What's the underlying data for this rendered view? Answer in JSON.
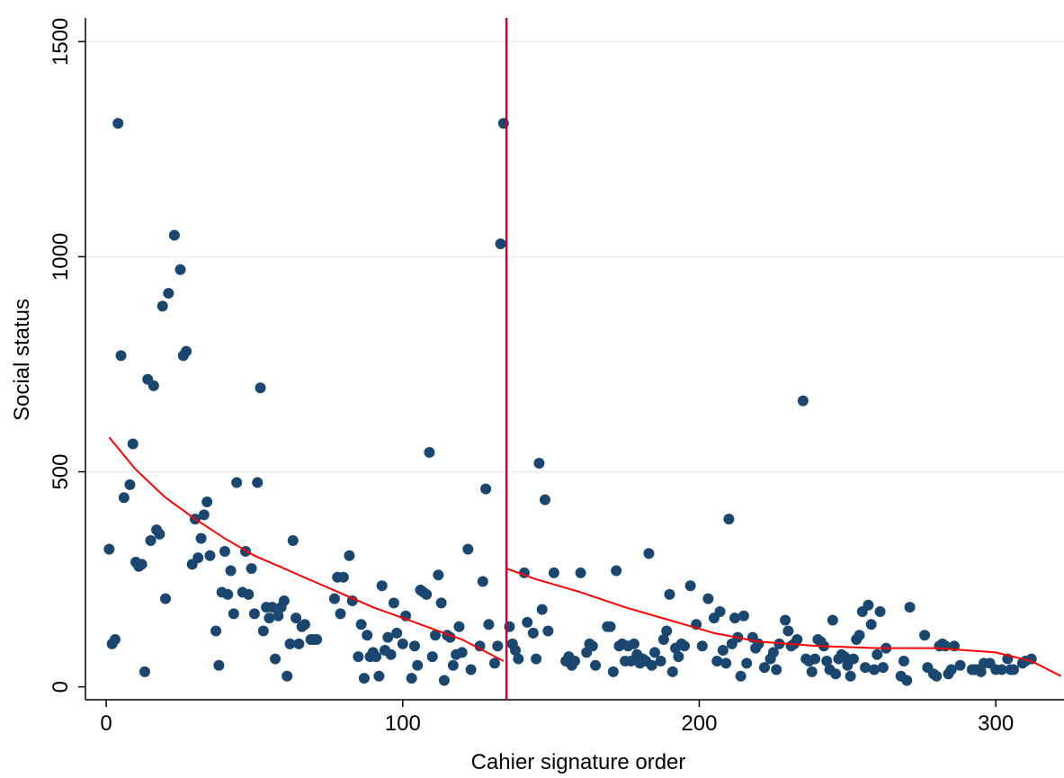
{
  "chart_data": {
    "type": "scatter",
    "title": "",
    "xlabel": "Cahier signature order",
    "ylabel": "Social status",
    "xlim": [
      -7,
      323
    ],
    "ylim": [
      -30,
      1555
    ],
    "xticks": [
      0,
      100,
      200,
      300
    ],
    "yticks": [
      0,
      500,
      1000,
      1500
    ],
    "grid": "horizontal",
    "colors": {
      "points": "#1a476f",
      "fit": "#ff0000",
      "cutoff": "#c10534",
      "grid": "#e6eef0"
    },
    "cutoff_x": 135,
    "points": [
      [
        1,
        320
      ],
      [
        2,
        100
      ],
      [
        3,
        110
      ],
      [
        4,
        1310
      ],
      [
        5,
        770
      ],
      [
        6,
        440
      ],
      [
        8,
        470
      ],
      [
        9,
        565
      ],
      [
        10,
        290
      ],
      [
        11,
        280
      ],
      [
        12,
        285
      ],
      [
        13,
        35
      ],
      [
        14,
        715
      ],
      [
        15,
        340
      ],
      [
        16,
        700
      ],
      [
        17,
        365
      ],
      [
        18,
        355
      ],
      [
        19,
        885
      ],
      [
        20,
        205
      ],
      [
        21,
        915
      ],
      [
        23,
        1050
      ],
      [
        25,
        970
      ],
      [
        26,
        770
      ],
      [
        27,
        780
      ],
      [
        29,
        285
      ],
      [
        30,
        390
      ],
      [
        31,
        300
      ],
      [
        32,
        345
      ],
      [
        33,
        400
      ],
      [
        34,
        430
      ],
      [
        35,
        305
      ],
      [
        37,
        130
      ],
      [
        38,
        50
      ],
      [
        39,
        220
      ],
      [
        40,
        315
      ],
      [
        41,
        215
      ],
      [
        42,
        270
      ],
      [
        43,
        170
      ],
      [
        44,
        475
      ],
      [
        46,
        220
      ],
      [
        47,
        315
      ],
      [
        48,
        215
      ],
      [
        49,
        275
      ],
      [
        50,
        170
      ],
      [
        51,
        475
      ],
      [
        52,
        695
      ],
      [
        53,
        130
      ],
      [
        54,
        185
      ],
      [
        55,
        160
      ],
      [
        56,
        185
      ],
      [
        57,
        65
      ],
      [
        58,
        165
      ],
      [
        59,
        185
      ],
      [
        60,
        200
      ],
      [
        61,
        25
      ],
      [
        62,
        100
      ],
      [
        63,
        340
      ],
      [
        64,
        160
      ],
      [
        65,
        100
      ],
      [
        66,
        140
      ],
      [
        67,
        145
      ],
      [
        69,
        110
      ],
      [
        70,
        110
      ],
      [
        71,
        110
      ],
      [
        77,
        205
      ],
      [
        78,
        255
      ],
      [
        79,
        170
      ],
      [
        80,
        255
      ],
      [
        82,
        305
      ],
      [
        83,
        200
      ],
      [
        85,
        70
      ],
      [
        86,
        145
      ],
      [
        87,
        20
      ],
      [
        88,
        120
      ],
      [
        89,
        70
      ],
      [
        90,
        80
      ],
      [
        91,
        70
      ],
      [
        92,
        25
      ],
      [
        93,
        235
      ],
      [
        94,
        85
      ],
      [
        95,
        115
      ],
      [
        96,
        75
      ],
      [
        97,
        195
      ],
      [
        98,
        125
      ],
      [
        100,
        100
      ],
      [
        101,
        165
      ],
      [
        103,
        20
      ],
      [
        104,
        95
      ],
      [
        105,
        50
      ],
      [
        106,
        225
      ],
      [
        107,
        220
      ],
      [
        108,
        215
      ],
      [
        109,
        545
      ],
      [
        110,
        70
      ],
      [
        111,
        120
      ],
      [
        112,
        260
      ],
      [
        113,
        195
      ],
      [
        114,
        15
      ],
      [
        115,
        120
      ],
      [
        116,
        115
      ],
      [
        117,
        50
      ],
      [
        118,
        75
      ],
      [
        119,
        140
      ],
      [
        120,
        80
      ],
      [
        122,
        320
      ],
      [
        123,
        40
      ],
      [
        126,
        95
      ],
      [
        127,
        245
      ],
      [
        128,
        460
      ],
      [
        129,
        145
      ],
      [
        131,
        55
      ],
      [
        132,
        95
      ],
      [
        133,
        1030
      ],
      [
        134,
        1310
      ],
      [
        136,
        140
      ],
      [
        137,
        100
      ],
      [
        138,
        85
      ],
      [
        139,
        65
      ],
      [
        141,
        265
      ],
      [
        142,
        150
      ],
      [
        144,
        125
      ],
      [
        145,
        65
      ],
      [
        146,
        520
      ],
      [
        147,
        180
      ],
      [
        148,
        435
      ],
      [
        149,
        130
      ],
      [
        151,
        265
      ],
      [
        155,
        60
      ],
      [
        156,
        70
      ],
      [
        157,
        50
      ],
      [
        158,
        60
      ],
      [
        160,
        265
      ],
      [
        162,
        80
      ],
      [
        163,
        100
      ],
      [
        164,
        95
      ],
      [
        165,
        50
      ],
      [
        169,
        140
      ],
      [
        170,
        140
      ],
      [
        171,
        35
      ],
      [
        172,
        270
      ],
      [
        173,
        95
      ],
      [
        174,
        100
      ],
      [
        175,
        60
      ],
      [
        176,
        95
      ],
      [
        177,
        60
      ],
      [
        178,
        100
      ],
      [
        179,
        75
      ],
      [
        180,
        55
      ],
      [
        181,
        65
      ],
      [
        182,
        60
      ],
      [
        183,
        310
      ],
      [
        184,
        50
      ],
      [
        185,
        80
      ],
      [
        187,
        60
      ],
      [
        188,
        110
      ],
      [
        189,
        130
      ],
      [
        190,
        215
      ],
      [
        191,
        35
      ],
      [
        192,
        90
      ],
      [
        193,
        70
      ],
      [
        194,
        100
      ],
      [
        195,
        95
      ],
      [
        197,
        235
      ],
      [
        199,
        145
      ],
      [
        201,
        95
      ],
      [
        203,
        205
      ],
      [
        205,
        160
      ],
      [
        206,
        60
      ],
      [
        207,
        175
      ],
      [
        208,
        85
      ],
      [
        209,
        55
      ],
      [
        210,
        390
      ],
      [
        211,
        100
      ],
      [
        212,
        160
      ],
      [
        213,
        115
      ],
      [
        214,
        25
      ],
      [
        215,
        165
      ],
      [
        216,
        55
      ],
      [
        218,
        115
      ],
      [
        219,
        90
      ],
      [
        220,
        100
      ],
      [
        222,
        45
      ],
      [
        224,
        65
      ],
      [
        225,
        80
      ],
      [
        226,
        40
      ],
      [
        227,
        100
      ],
      [
        229,
        155
      ],
      [
        230,
        130
      ],
      [
        231,
        95
      ],
      [
        232,
        100
      ],
      [
        233,
        110
      ],
      [
        235,
        665
      ],
      [
        236,
        65
      ],
      [
        237,
        60
      ],
      [
        238,
        35
      ],
      [
        239,
        65
      ],
      [
        240,
        110
      ],
      [
        241,
        105
      ],
      [
        242,
        95
      ],
      [
        243,
        60
      ],
      [
        244,
        40
      ],
      [
        245,
        155
      ],
      [
        246,
        30
      ],
      [
        247,
        65
      ],
      [
        248,
        75
      ],
      [
        249,
        70
      ],
      [
        250,
        50
      ],
      [
        251,
        25
      ],
      [
        252,
        65
      ],
      [
        253,
        110
      ],
      [
        254,
        120
      ],
      [
        255,
        175
      ],
      [
        256,
        45
      ],
      [
        257,
        190
      ],
      [
        258,
        145
      ],
      [
        259,
        40
      ],
      [
        260,
        75
      ],
      [
        261,
        175
      ],
      [
        262,
        45
      ],
      [
        263,
        90
      ],
      [
        268,
        25
      ],
      [
        269,
        60
      ],
      [
        270,
        15
      ],
      [
        271,
        185
      ],
      [
        276,
        120
      ],
      [
        277,
        45
      ],
      [
        279,
        30
      ],
      [
        280,
        25
      ],
      [
        281,
        95
      ],
      [
        282,
        100
      ],
      [
        283,
        95
      ],
      [
        284,
        30
      ],
      [
        285,
        40
      ],
      [
        286,
        95
      ],
      [
        288,
        50
      ],
      [
        292,
        40
      ],
      [
        293,
        40
      ],
      [
        294,
        40
      ],
      [
        295,
        35
      ],
      [
        296,
        55
      ],
      [
        298,
        55
      ],
      [
        300,
        40
      ],
      [
        302,
        40
      ],
      [
        304,
        65
      ],
      [
        305,
        40
      ],
      [
        306,
        40
      ],
      [
        309,
        55
      ],
      [
        310,
        60
      ],
      [
        312,
        65
      ]
    ],
    "fit_left": [
      [
        1,
        580
      ],
      [
        10,
        505
      ],
      [
        20,
        440
      ],
      [
        30,
        390
      ],
      [
        40,
        345
      ],
      [
        50,
        305
      ],
      [
        60,
        275
      ],
      [
        70,
        245
      ],
      [
        80,
        215
      ],
      [
        90,
        185
      ],
      [
        100,
        160
      ],
      [
        110,
        135
      ],
      [
        120,
        110
      ],
      [
        134,
        60
      ]
    ],
    "fit_right": [
      [
        135,
        275
      ],
      [
        145,
        250
      ],
      [
        160,
        220
      ],
      [
        175,
        185
      ],
      [
        190,
        155
      ],
      [
        205,
        125
      ],
      [
        220,
        105
      ],
      [
        240,
        95
      ],
      [
        260,
        90
      ],
      [
        280,
        90
      ],
      [
        300,
        80
      ],
      [
        312,
        60
      ],
      [
        322,
        25
      ]
    ]
  }
}
